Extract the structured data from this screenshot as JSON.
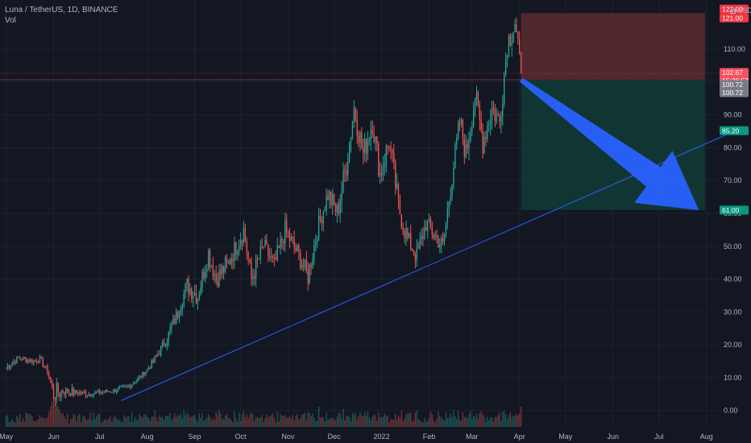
{
  "header": {
    "symbol_line": "Luna / TetherUS, 1D, BINANCE",
    "vol_label": "Vol",
    "unit_label": "USDT",
    "unit_icon": "lock-icon"
  },
  "colors": {
    "background": "#131722",
    "grid": "#1e222d",
    "up": "#26a69a",
    "down": "#ef5350",
    "trendline": "#2962ff",
    "arrow": "#2962ff",
    "stop_zone": "#5d2a30",
    "target_zone": "#123b36"
  },
  "chart_data": {
    "type": "candlestick",
    "title": "Luna / TetherUS, 1D, BINANCE",
    "ylim": [
      -5,
      125
    ],
    "y_ticks": [
      0,
      10,
      20,
      30,
      40,
      50,
      60,
      70,
      80,
      90,
      100,
      110
    ],
    "y_tick_labels": [
      "0.00",
      "10.00",
      "20.00",
      "30.00",
      "40.00",
      "50.00",
      "60.00",
      "70.00",
      "80.00",
      "90.00",
      "100.00",
      "110.00"
    ],
    "x_tick_labels": [
      "May",
      "Jun",
      "Jul",
      "Aug",
      "Sep",
      "Oct",
      "Nov",
      "Dec",
      "2022",
      "Feb",
      "Mar",
      "Apr",
      "May",
      "Jun",
      "Jul",
      "Aug"
    ],
    "x_tick_days": [
      0,
      31,
      61,
      92,
      123,
      153,
      184,
      214,
      245,
      276,
      304,
      335,
      365,
      396,
      426,
      457
    ],
    "x_range_days": [
      -4,
      465
    ],
    "anchors": [
      [
        0,
        13,
        1.0
      ],
      [
        8,
        16,
        1.0
      ],
      [
        18,
        15,
        1.0
      ],
      [
        22,
        15.5,
        1.0
      ],
      [
        27,
        12,
        1.0
      ],
      [
        31,
        5,
        3.0
      ],
      [
        36,
        6,
        1.5
      ],
      [
        45,
        5.5,
        1.0
      ],
      [
        55,
        5,
        0.8
      ],
      [
        61,
        5.5,
        0.8
      ],
      [
        70,
        6,
        0.8
      ],
      [
        78,
        7,
        0.8
      ],
      [
        85,
        9,
        0.8
      ],
      [
        95,
        14,
        1.5
      ],
      [
        105,
        22,
        2.0
      ],
      [
        112,
        30,
        2.5
      ],
      [
        118,
        38,
        3.0
      ],
      [
        125,
        35,
        3.0
      ],
      [
        132,
        48,
        3.0
      ],
      [
        137,
        40,
        3.0
      ],
      [
        145,
        45,
        3.0
      ],
      [
        155,
        55,
        3.0
      ],
      [
        160,
        40,
        3.0
      ],
      [
        168,
        50,
        3.0
      ],
      [
        175,
        44,
        3.0
      ],
      [
        182,
        55,
        3.0
      ],
      [
        190,
        48,
        3.0
      ],
      [
        197,
        41,
        3.0
      ],
      [
        203,
        55,
        3.0
      ],
      [
        210,
        66,
        3.5
      ],
      [
        216,
        60,
        4.0
      ],
      [
        222,
        75,
        4.0
      ],
      [
        227,
        92,
        4.0
      ],
      [
        233,
        78,
        4.0
      ],
      [
        239,
        88,
        4.0
      ],
      [
        244,
        72,
        4.0
      ],
      [
        250,
        82,
        4.0
      ],
      [
        256,
        62,
        4.0
      ],
      [
        262,
        52,
        3.0
      ],
      [
        268,
        47,
        3.0
      ],
      [
        274,
        57,
        3.0
      ],
      [
        280,
        53,
        3.0
      ],
      [
        285,
        50,
        3.0
      ],
      [
        290,
        68,
        3.5
      ],
      [
        296,
        88,
        4.0
      ],
      [
        300,
        78,
        4.0
      ],
      [
        306,
        96,
        4.0
      ],
      [
        311,
        82,
        4.0
      ],
      [
        317,
        92,
        4.0
      ],
      [
        322,
        88,
        4.0
      ],
      [
        327,
        112,
        4.0
      ],
      [
        332,
        118,
        3.0
      ],
      [
        336,
        102.67,
        2.0
      ]
    ],
    "volume_ylim": [
      0,
      10
    ],
    "stop_zone": {
      "upper": 121.0,
      "lower": 100.72,
      "start_day": 336,
      "end_day": 456
    },
    "target_zone": {
      "upper": 100.72,
      "lower": 61.0,
      "start_day": 336,
      "end_day": 456
    },
    "target_level_mid": 85.2,
    "trendline": {
      "start": [
        75,
        3
      ],
      "end": [
        470,
        84
      ]
    },
    "arrow": {
      "start": [
        336,
        100.72
      ],
      "end": [
        452,
        61
      ]
    },
    "price_badges": [
      {
        "label": "121.00",
        "value": 121.0,
        "color": "#f23645",
        "offset": -5
      },
      {
        "label": "121.00",
        "value": 121.0,
        "color": "#f23645",
        "offset": 6
      },
      {
        "label": "102.67",
        "value": 102.67,
        "color": "#f7525f",
        "offset": -1
      },
      {
        "label": "15:26:53",
        "value": 102.67,
        "color": "#f7525f",
        "offset": 9
      },
      {
        "label": "100.72",
        "value": 100.72,
        "color": "#787b86",
        "offset": 6
      },
      {
        "label": "100.72",
        "value": 100.72,
        "color": "#787b86",
        "offset": 16
      },
      {
        "label": "85.20",
        "value": 85.2,
        "color": "#089981",
        "offset": 0
      },
      {
        "label": "61.00",
        "value": 61.0,
        "color": "#089981",
        "offset": 0
      }
    ]
  }
}
